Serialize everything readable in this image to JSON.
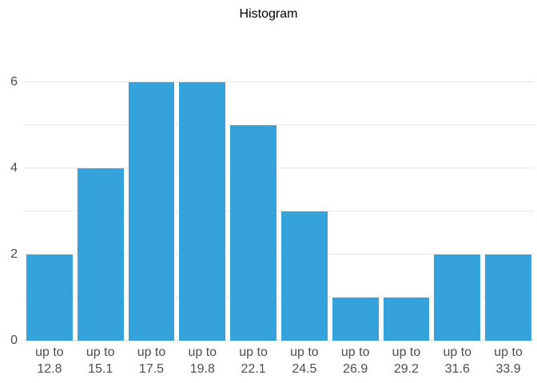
{
  "colors": {
    "background": "#ffffff",
    "bar": "#36a2db",
    "grid": "#e7e7e7",
    "axis_line": "#dedede",
    "tick_label": "#4d4d4d",
    "title": "#000000"
  },
  "chart_data": {
    "type": "bar",
    "title": "Histogram",
    "categories": [
      "up to 12.8",
      "up to 15.1",
      "up to 17.5",
      "up to 19.8",
      "up to 22.1",
      "up to 24.5",
      "up to 26.9",
      "up to 29.2",
      "up to 31.6",
      "up to 33.9"
    ],
    "x_tick_line1": "up to",
    "bin_edges": [
      "12.8",
      "15.1",
      "17.5",
      "19.8",
      "22.1",
      "24.5",
      "26.9",
      "29.2",
      "31.6",
      "33.9"
    ],
    "values": [
      2,
      4,
      6,
      6,
      5,
      3,
      1,
      1,
      2,
      2
    ],
    "xlabel": "",
    "ylabel": "",
    "ylim": [
      0,
      6
    ],
    "y_ticks": [
      0,
      2,
      4,
      6
    ],
    "grid_step": 1,
    "grid": "horizontal",
    "legend_position": "none"
  }
}
